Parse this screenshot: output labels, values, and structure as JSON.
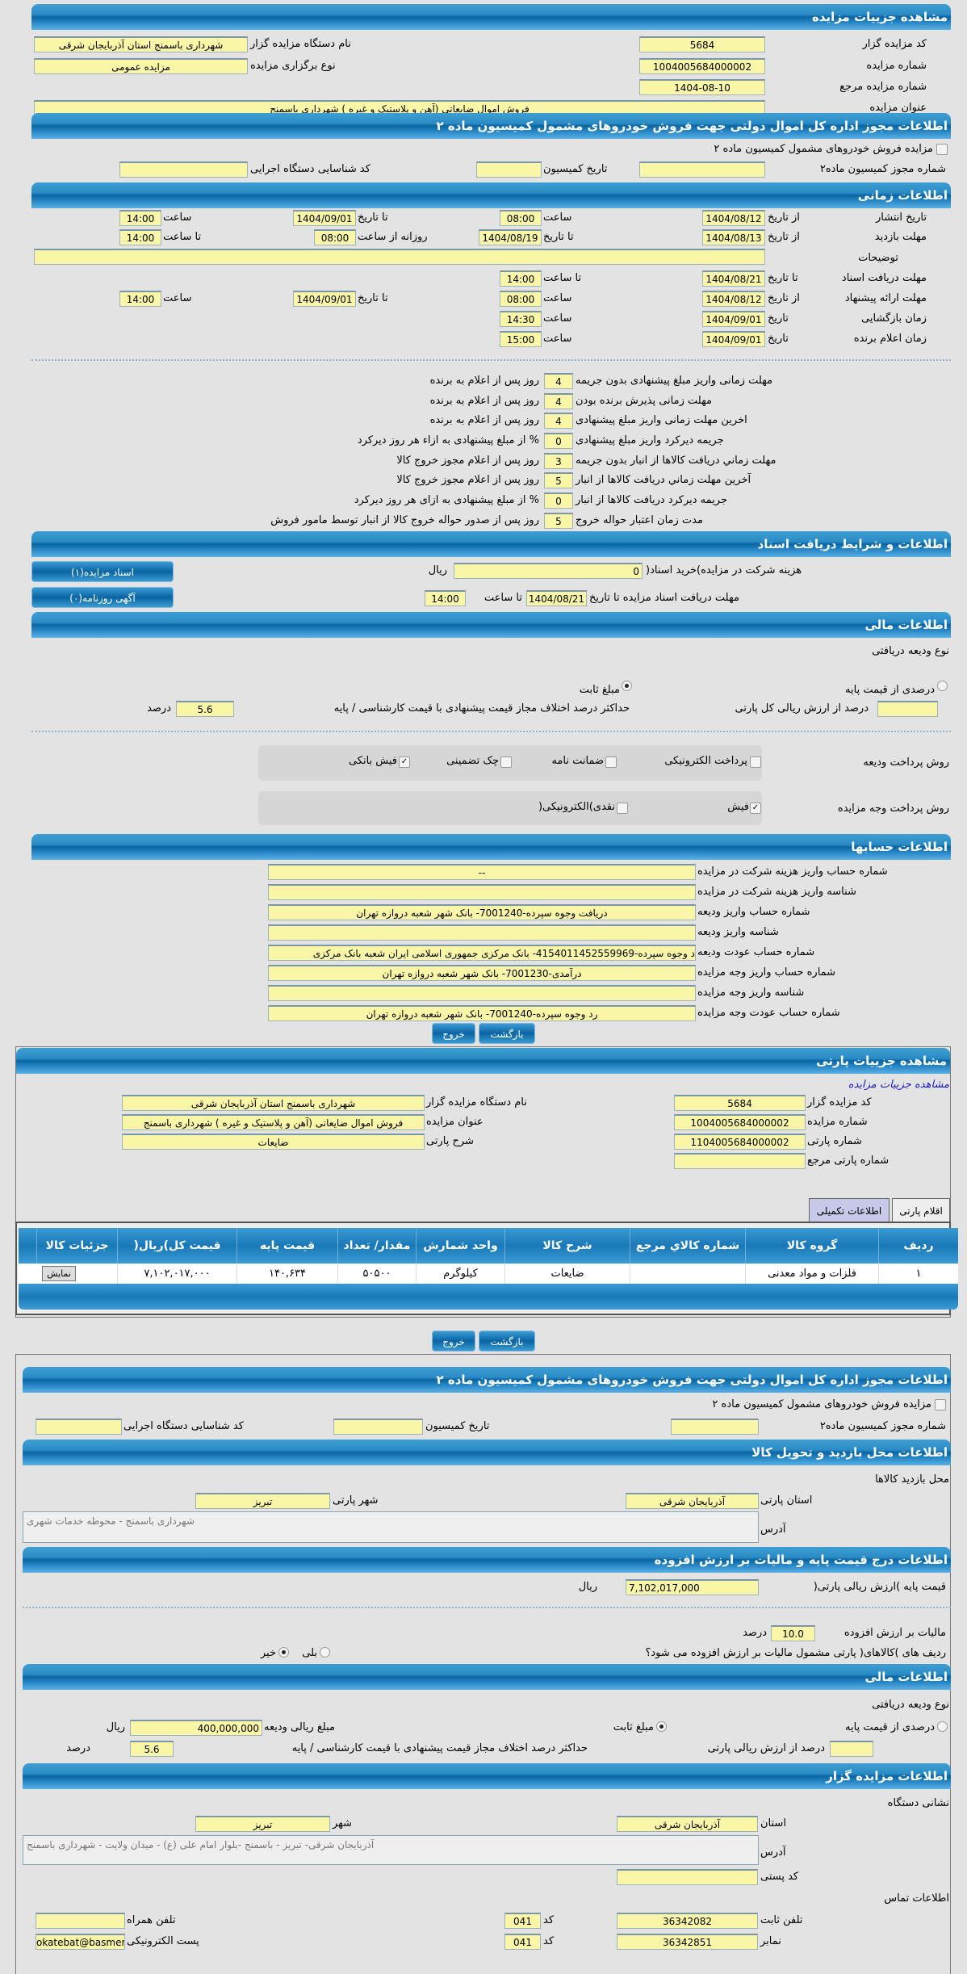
{
  "s1": {
    "title": "مشاهده جزییات مزایده",
    "code_l": "کد مزایده گزار",
    "code": "5684",
    "org_l": "نام دستگاه مزایده گزار",
    "org": "شهرداری باسمنج استان آذربایجان شرقی",
    "num_l": "شماره مزایده",
    "num": "1004005684000002",
    "type_l": "نوع برگزاری مزایده",
    "type": "مزایده عمومی",
    "ref_l": "شماره مزایده مرجع",
    "ref": "1404-08-10",
    "subj_l": "عنوان مزایده",
    "subj": "فروش اموال ضایعاتی (آهن و پلاستیک و غیره ) شهرداری باسمنج"
  },
  "s2": {
    "title": "اطلاعات مجوز اداره کل اموال دولتی جهت فروش خودروهای مشمول کمیسیون ماده ۲",
    "chk": "مزایده فروش خودروهای مشمول کمیسیون ماده ۲",
    "lic_l": "شماره مجوز کمیسیون ماده۲",
    "date_l": "تاریخ کمیسیون",
    "id_l": "کد شناسایی دستگاه اجرایی"
  },
  "s3": {
    "title": "اطلاعات زمانی",
    "pub_l": "تاریخ انتشار",
    "from": "از تاریخ",
    "to_date": "تا تاریخ",
    "hour": "ساعت",
    "to_hour": "تا ساعت",
    "date": "تاریخ",
    "daily": "روزانه از ساعت",
    "pub": {
      "from": "1404/08/12",
      "time": "08:00",
      "to": "1404/09/01",
      "to_time": "14:00"
    },
    "visit_l": "مهلت بازدید",
    "visit": {
      "from": "1404/08/13",
      "to": "1404/08/19",
      "daily": "08:00",
      "to_time": "14:00"
    },
    "desc_l": "توضیحات",
    "desc": "",
    "docs_l": "مهلت دریافت اسناد",
    "docs": {
      "to": "1404/08/21",
      "to_time": "14:00"
    },
    "offer_l": "مهلت ارائه پیشنهاد",
    "offer": {
      "from": "1404/08/12",
      "time": "08:00",
      "to": "1404/09/01",
      "to_time": "14:00"
    },
    "open_l": "زمان بازگشایی",
    "open": {
      "date": "1404/09/01",
      "time": "14:30"
    },
    "win_l": "زمان اعلام برنده",
    "win": {
      "date": "1404/09/01",
      "time": "15:00"
    }
  },
  "rules": [
    {
      "label": "مهلت زمانی واریز مبلغ پیشنهادی بدون جریمه",
      "value": "4",
      "suffix": "روز پس از اعلام به برنده"
    },
    {
      "label": "مهلت زمانی پذیرش برنده بودن",
      "value": "4",
      "suffix": "روز پس از اعلام به برنده"
    },
    {
      "label": "اخرین مهلت زمانی واریز مبلغ پیشنهادی",
      "value": "4",
      "suffix": "روز پس از اعلام به برنده"
    },
    {
      "label": "جریمه دیرکرد واریز مبلغ پیشنهادی",
      "value": "0",
      "suffix": "% از مبلغ پیشنهادی به ازاء هر روز دیرکرد"
    },
    {
      "label": "مهلت زماني دريافت كالاها از انبار بدون جريمه",
      "value": "3",
      "suffix": "روز پس از اعلام مجوز خروج کالا"
    },
    {
      "label": "آخرين مهلت زماني دريافت كالاها از انبار",
      "value": "5",
      "suffix": "روز پس از اعلام مجوز خروج کالا"
    },
    {
      "label": "جريمه ديركرد دريافت كالاها از انبار",
      "value": "0",
      "suffix": "% از مبلغ پیشنهادی به ازای هر روز دیرکرد"
    },
    {
      "label": "مدت زمان اعتبار حواله خروج",
      "value": "5",
      "suffix": "روز پس از صدور حواله خروج کالا از انبار توسط مامور فروش"
    }
  ],
  "s4": {
    "title": "اطلاعات و شرایط دریافت اسناد",
    "fee_l": "هزینه شرکت در مزایده)خرید اسناد(",
    "fee": "0",
    "rial": "ریال",
    "dl_l": "مهلت دریافت اسناد مزایده تا تاریخ",
    "dl_date": "1404/08/21",
    "to_hour": "تا ساعت",
    "dl_time": "14:00",
    "btn_docs": "اسناد مزایده(۱)",
    "btn_ads": "آگهی روزنامه(۰)"
  },
  "s5": {
    "title": "اطلاعات مالی",
    "dep_type": "نوع ودیعه دریافتی",
    "opt_pct": "درصدی از قیمت پایه",
    "opt_fixed": "مبلغ ثابت",
    "selected": "مبلغ ثابت",
    "pct_l": "درصد از ارزش ریالی کل پارتی",
    "pct": "",
    "max_l": "حداکثر درصد اختلاف مجاز قیمت پیشنهادی با قیمت کارشناسی / پایه",
    "max": "5.6",
    "percent": "درصد",
    "dep_pay_l": "روش پرداخت ودیعه",
    "dep_pay": [
      {
        "label": "پرداخت الکترونیکی",
        "checked": false
      },
      {
        "label": "ضمانت نامه",
        "checked": false
      },
      {
        "label": "چک تضمینی",
        "checked": false
      },
      {
        "label": "فیش بانکی",
        "checked": true
      }
    ],
    "pay_l": "روش پرداخت وجه مزایده",
    "pay": [
      {
        "label": "فیش",
        "checked": true
      },
      {
        "label": "نقدی)الکترونیکی(",
        "checked": false
      }
    ]
  },
  "s6": {
    "title": "اطلاعات حسابها",
    "rows": [
      {
        "label": "شماره حساب واریز هزینه شرکت در مزایده",
        "value": "--"
      },
      {
        "label": "شناسه واریز هزینه شرکت در مزایده",
        "value": ""
      },
      {
        "label": "شماره حساب واریز ودیعه",
        "value": "دریافت وجوه سپرده-7001240- بانک شهر شعبه دروازه تهران"
      },
      {
        "label": "شناسه واریز ودیعه",
        "value": ""
      },
      {
        "label": "شماره حساب عودت ودیعه",
        "value": "د وجوه سپرده-4154011452559969- بانک مرکزی جمهوری اسلامی ایران شعبه بانک مرکزی"
      },
      {
        "label": "شماره حساب واریز وجه مزایده",
        "value": "درآمدی-7001230- بانک شهر شعبه دروازه تهران"
      },
      {
        "label": "شناسه واریز وجه مزایده",
        "value": ""
      },
      {
        "label": "شماره حساب عودت وجه مزایده",
        "value": "رد وجوه سپرده-7001240- بانک شهر شعبه دروازه تهران"
      }
    ]
  },
  "buttons": {
    "back": "بازگشت",
    "exit": "خروج"
  },
  "party": {
    "title": "مشاهده جزییات پارتی",
    "link": "مشاهده جزییات مزایده",
    "code_l": "کد مزایده گزار",
    "code": "5684",
    "org_l": "نام دستگاه مزایده گزار",
    "org": "شهرداری باسمنج استان آذربایجان شرقی",
    "num_l": "شماره مزایده",
    "num": "1004005684000002",
    "subj_l": "عنوان مزایده",
    "subj": "فروش اموال ضایعاتی (آهن و پلاستیک و غیره ) شهرداری باسمنج",
    "pnum_l": "شماره پارتی",
    "pnum": "1104005684000002",
    "pdesc_l": "شرح پارتی",
    "pdesc": "ضایعات",
    "pref_l": "شماره پارتی مرجع",
    "pref": "",
    "tabs": [
      {
        "label": "اقلام پارتی",
        "active": true
      },
      {
        "label": "اطلاعات تکمیلی",
        "active": false
      }
    ],
    "columns": [
      "ردیف",
      "گروه کالا",
      "شماره کالاي مرجع",
      "شرح کالا",
      "واحد شمارش",
      "مقدار/ تعداد",
      "قیمت پایه",
      "قیمت کل)ریال(",
      "جزئیات کالا"
    ],
    "rows": [
      [
        "۱",
        "فلزات و مواد معدنی",
        "",
        "ضایعات",
        "کیلوگرم",
        "۵۰۵۰۰",
        "۱۴۰,۶۳۴",
        "۷,۱۰۲,۰۱۷,۰۰۰",
        "نمایش"
      ]
    ]
  },
  "p2": {
    "lic_title": "اطلاعات مجوز اداره کل اموال دولتی جهت فروش خودروهای مشمول کمیسیون ماده ۲",
    "chk": "مزایده فروش خودروهای مشمول کمیسیون ماده ۲",
    "lic_l": "شماره مجوز کمیسیون ماده۲",
    "date_l": "تاریخ کمیسیون",
    "id_l": "کد شناسایی دستگاه اجرایی",
    "visit_title": "اطلاعات محل بازدید و تحویل کالا",
    "visit_loc": "محل بازدید کالاها",
    "prov_l": "استان پارتی",
    "prov": "آذربایجان شرقی",
    "city_l": "شهر پارتی",
    "city": "تبریز",
    "addr_l": "آدرس",
    "addr": "شهرداری باسمنج - محوطه خدمات شهری",
    "price_title": "اطلاعات درج قیمت پایه و مالیات بر ارزش افزوده",
    "base_l": "قیمت پایه )ارزش ریالی پارتی(",
    "base": "7,102,017,000",
    "rial": "ریال",
    "vat_l": "مالیات بر ارزش افزوده",
    "vat": "10.0",
    "percent": "درصد",
    "vat_q": "ردیف های )کالاهای( پارتی مشمول مالیات بر ارزش افزوده می شود؟",
    "yes": "بلی",
    "no": "خیر",
    "vat_selected": "خیر",
    "fin_title": "اطلاعات مالی",
    "dep_type": "نوع ودیعه دریافتی",
    "opt_pct": "درصدی از قیمت پایه",
    "opt_fixed": "مبلغ ثابت",
    "amt_l": "مبلغ ریالی ودیعه",
    "amt": "400,000,000",
    "pct_l": "درصد از ارزش ریالی پارتی",
    "pct": "",
    "max_l": "حداکثر درصد اختلاف مجاز قیمت پیشنهادی با قیمت کارشناسی / پایه",
    "max": "5.6",
    "org_title": "اطلاعات مزایده گزار",
    "org_addr": "نشانی دستگاه",
    "oprov_l": "استان",
    "oprov": "آذربایجان شرقی",
    "ocity_l": "شهر",
    "ocity": "تبریز",
    "oaddr": "آذربایجان شرقی- تبریز - باسمنج -بلوار امام علی (ع) - میدان ولایت - شهرداری باسمنج",
    "zip_l": "کد پستی",
    "zip": "",
    "contact": "اطلاعات تماس",
    "tel_l": "تلفن ثابت",
    "tel": "36342082",
    "code_l": "کد",
    "tel_code": "041",
    "mob_l": "تلفن همراه",
    "mob": "",
    "fax_l": "نمابر",
    "fax": "36342851",
    "fax_code": "041",
    "email_l": "پست الکترونیکی",
    "email": "okatebat@basmenj"
  },
  "colors": {
    "header": "#0a64a2",
    "field": "#f9f6a8",
    "bg": "#e3e3e3",
    "link": "#1a1acc",
    "tab_inactive": "#c8c8e8"
  }
}
